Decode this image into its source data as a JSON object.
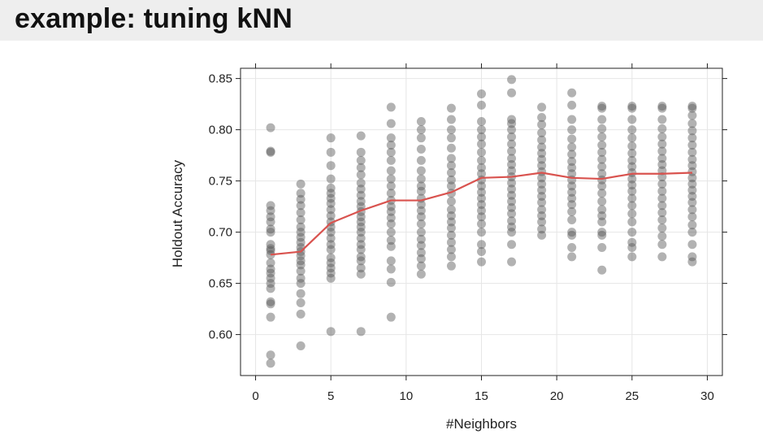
{
  "slide": {
    "title": "example: tuning kNN"
  },
  "chart_data": {
    "type": "scatter",
    "title": "",
    "xlabel": "#Neighbors",
    "ylabel": "Holdout Accuracy",
    "xlim": [
      -1,
      31
    ],
    "ylim": [
      0.56,
      0.86
    ],
    "xticks": [
      0,
      5,
      10,
      15,
      20,
      25,
      30
    ],
    "xtick_labels": [
      "0",
      "5",
      "10",
      "15",
      "20",
      "25",
      "30"
    ],
    "yticks": [
      0.6,
      0.65,
      0.7,
      0.75,
      0.8,
      0.85
    ],
    "ytick_labels": [
      "0.60",
      "0.65",
      "0.70",
      "0.75",
      "0.80",
      "0.85"
    ],
    "grid": true,
    "colors": {
      "points": "#555555",
      "mean_line": "#d9534f",
      "grid": "#e6e6e6",
      "axis": "#222222"
    },
    "points": [
      {
        "x": 1,
        "y": [
          0.802,
          0.779,
          0.778,
          0.726,
          0.721,
          0.715,
          0.71,
          0.703,
          0.7,
          0.688,
          0.684,
          0.682,
          0.678,
          0.67,
          0.664,
          0.66,
          0.655,
          0.65,
          0.645,
          0.632,
          0.63,
          0.617,
          0.58,
          0.572
        ]
      },
      {
        "x": 3,
        "y": [
          0.747,
          0.738,
          0.732,
          0.726,
          0.719,
          0.712,
          0.705,
          0.7,
          0.695,
          0.69,
          0.685,
          0.681,
          0.677,
          0.672,
          0.668,
          0.662,
          0.655,
          0.65,
          0.64,
          0.631,
          0.62,
          0.589
        ]
      },
      {
        "x": 5,
        "y": [
          0.792,
          0.778,
          0.765,
          0.752,
          0.743,
          0.738,
          0.733,
          0.728,
          0.722,
          0.716,
          0.71,
          0.705,
          0.7,
          0.694,
          0.688,
          0.683,
          0.675,
          0.67,
          0.665,
          0.66,
          0.655,
          0.603
        ]
      },
      {
        "x": 7,
        "y": [
          0.794,
          0.778,
          0.77,
          0.763,
          0.756,
          0.748,
          0.742,
          0.736,
          0.73,
          0.725,
          0.72,
          0.715,
          0.71,
          0.705,
          0.7,
          0.694,
          0.688,
          0.683,
          0.676,
          0.672,
          0.665,
          0.659,
          0.603
        ]
      },
      {
        "x": 9,
        "y": [
          0.822,
          0.806,
          0.792,
          0.785,
          0.778,
          0.77,
          0.76,
          0.752,
          0.745,
          0.738,
          0.731,
          0.725,
          0.72,
          0.714,
          0.708,
          0.7,
          0.692,
          0.686,
          0.672,
          0.664,
          0.651,
          0.617
        ]
      },
      {
        "x": 11,
        "y": [
          0.808,
          0.8,
          0.792,
          0.781,
          0.77,
          0.76,
          0.752,
          0.745,
          0.74,
          0.733,
          0.727,
          0.721,
          0.715,
          0.708,
          0.7,
          0.693,
          0.687,
          0.68,
          0.674,
          0.667,
          0.659
        ]
      },
      {
        "x": 13,
        "y": [
          0.821,
          0.81,
          0.8,
          0.792,
          0.782,
          0.772,
          0.765,
          0.758,
          0.751,
          0.745,
          0.738,
          0.73,
          0.722,
          0.716,
          0.71,
          0.704,
          0.697,
          0.69,
          0.683,
          0.676,
          0.667
        ]
      },
      {
        "x": 15,
        "y": [
          0.835,
          0.824,
          0.808,
          0.8,
          0.793,
          0.786,
          0.778,
          0.77,
          0.763,
          0.757,
          0.751,
          0.745,
          0.739,
          0.733,
          0.727,
          0.721,
          0.715,
          0.708,
          0.7,
          0.688,
          0.681,
          0.671
        ]
      },
      {
        "x": 17,
        "y": [
          0.849,
          0.836,
          0.81,
          0.806,
          0.8,
          0.793,
          0.786,
          0.779,
          0.772,
          0.766,
          0.76,
          0.754,
          0.748,
          0.742,
          0.736,
          0.73,
          0.724,
          0.718,
          0.711,
          0.705,
          0.7,
          0.688,
          0.671
        ]
      },
      {
        "x": 19,
        "y": [
          0.822,
          0.812,
          0.805,
          0.797,
          0.79,
          0.783,
          0.777,
          0.771,
          0.765,
          0.759,
          0.753,
          0.747,
          0.741,
          0.735,
          0.729,
          0.722,
          0.716,
          0.71,
          0.703,
          0.697
        ]
      },
      {
        "x": 21,
        "y": [
          0.836,
          0.824,
          0.81,
          0.8,
          0.791,
          0.783,
          0.776,
          0.769,
          0.763,
          0.757,
          0.751,
          0.745,
          0.739,
          0.733,
          0.727,
          0.72,
          0.712,
          0.7,
          0.697,
          0.685,
          0.676
        ]
      },
      {
        "x": 23,
        "y": [
          0.823,
          0.821,
          0.81,
          0.801,
          0.793,
          0.785,
          0.778,
          0.771,
          0.764,
          0.757,
          0.751,
          0.745,
          0.738,
          0.73,
          0.722,
          0.716,
          0.71,
          0.7,
          0.697,
          0.685,
          0.663
        ]
      },
      {
        "x": 25,
        "y": [
          0.823,
          0.821,
          0.81,
          0.8,
          0.792,
          0.784,
          0.777,
          0.77,
          0.764,
          0.758,
          0.752,
          0.746,
          0.74,
          0.733,
          0.726,
          0.718,
          0.71,
          0.7,
          0.69,
          0.685,
          0.676
        ]
      },
      {
        "x": 27,
        "y": [
          0.823,
          0.821,
          0.81,
          0.801,
          0.793,
          0.786,
          0.779,
          0.772,
          0.766,
          0.76,
          0.754,
          0.747,
          0.74,
          0.733,
          0.726,
          0.719,
          0.712,
          0.704,
          0.696,
          0.688,
          0.676
        ]
      },
      {
        "x": 29,
        "y": [
          0.823,
          0.821,
          0.814,
          0.806,
          0.799,
          0.792,
          0.785,
          0.778,
          0.771,
          0.765,
          0.759,
          0.753,
          0.747,
          0.741,
          0.735,
          0.729,
          0.722,
          0.715,
          0.707,
          0.7,
          0.688,
          0.676,
          0.671
        ]
      }
    ],
    "mean_line": {
      "x": [
        1,
        3,
        5,
        7,
        9,
        11,
        13,
        15,
        17,
        19,
        21,
        23,
        25,
        27,
        29
      ],
      "y": [
        0.678,
        0.681,
        0.709,
        0.721,
        0.731,
        0.731,
        0.739,
        0.753,
        0.754,
        0.758,
        0.753,
        0.752,
        0.757,
        0.757,
        0.758
      ]
    }
  }
}
